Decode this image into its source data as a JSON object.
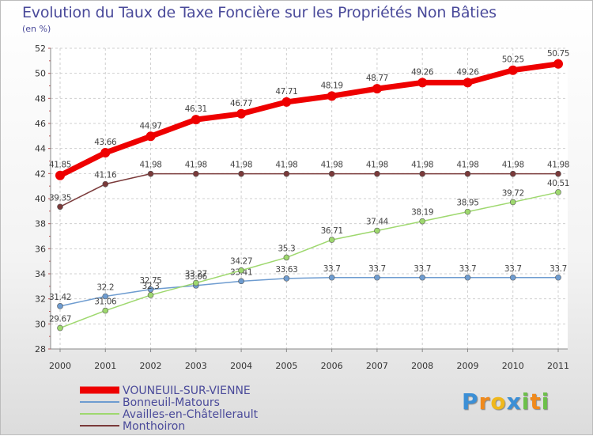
{
  "chart_data": {
    "type": "line",
    "title": "Evolution du Taux de Taxe Foncière sur les Propriétés Non Bâties",
    "subtitle": "(en %)",
    "xlabel": "",
    "ylabel": "",
    "x": [
      "2000",
      "2001",
      "2002",
      "2003",
      "2004",
      "2005",
      "2006",
      "2007",
      "2008",
      "2009",
      "2010",
      "2011"
    ],
    "ylim": [
      28,
      52
    ],
    "yticks": [
      "28",
      "30",
      "32",
      "34",
      "36",
      "38",
      "40",
      "42",
      "44",
      "46",
      "48",
      "50",
      "52"
    ],
    "grid": true,
    "legend": "bottom-left",
    "series": [
      {
        "name": "VOUNEUIL-SUR-VIENNE",
        "color": "#ee0000",
        "values": [
          41.85,
          43.66,
          44.97,
          46.31,
          46.77,
          47.71,
          48.19,
          48.77,
          49.26,
          49.26,
          50.25,
          50.75
        ],
        "labels": [
          "41.85",
          "43.66",
          "44.97",
          "46.31",
          "46.77",
          "47.71",
          "48.19",
          "48.77",
          "49.26",
          "49.26",
          "50.25",
          "50.75"
        ]
      },
      {
        "name": "Bonneuil-Matours",
        "color": "#6e9cd0",
        "values": [
          31.42,
          32.2,
          32.75,
          33.06,
          33.41,
          33.63,
          33.7,
          33.7,
          33.7,
          33.7,
          33.7,
          33.7
        ],
        "labels": [
          "31.42",
          "32.2",
          "32.75",
          "33.06",
          "33.41",
          "33.63",
          "33.7",
          "33.7",
          "33.7",
          "33.7",
          "33.7",
          "33.7"
        ]
      },
      {
        "name": "Availles-en-Châtellerault",
        "color": "#9ed86e",
        "values": [
          29.67,
          31.06,
          32.3,
          33.27,
          34.27,
          35.3,
          36.71,
          37.44,
          38.19,
          38.95,
          39.72,
          40.51
        ],
        "labels": [
          "29.67",
          "31.06",
          "32.3",
          "33.27",
          "34.27",
          "35.3",
          "36.71",
          "37.44",
          "38.19",
          "38.95",
          "39.72",
          "40.51"
        ]
      },
      {
        "name": "Monthoiron",
        "color": "#7a3a3a",
        "values": [
          39.35,
          41.16,
          41.98,
          41.98,
          41.98,
          41.98,
          41.98,
          41.98,
          41.98,
          41.98,
          41.98,
          41.98
        ],
        "labels": [
          "39.35",
          "41.16",
          "41.98",
          "41.98",
          "41.98",
          "41.98",
          "41.98",
          "41.98",
          "41.98",
          "41.98",
          "41.98",
          "41.98"
        ]
      }
    ]
  },
  "logo": {
    "text": "Proxiti",
    "letters": [
      "P",
      "r",
      "o",
      "x",
      "i",
      "t",
      "i"
    ]
  },
  "colors": {
    "title": "#4a4a9a",
    "grid": "#cfcfcf",
    "axis": "#888888"
  }
}
